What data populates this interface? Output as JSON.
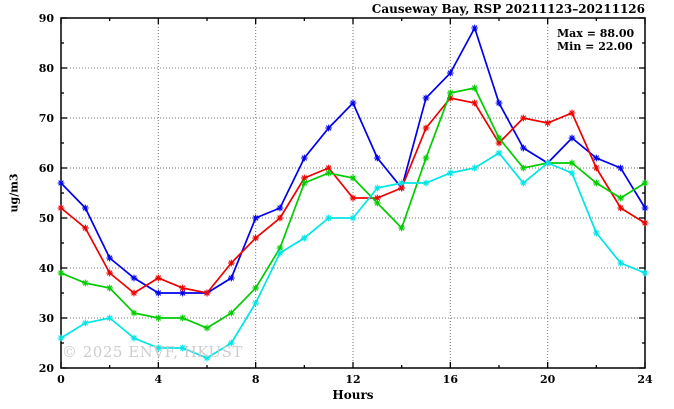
{
  "header": {
    "title": "Causeway Bay, RSP 20211123–20211126"
  },
  "annotations": {
    "max_label": "Max = 88.00",
    "min_label": "Min = 22.00"
  },
  "watermark": "© 2025 ENVF, HKUST",
  "axes": {
    "x_title": "Hours",
    "y_title": "ug/m3"
  },
  "chart_data": {
    "type": "line",
    "title": "Causeway Bay, RSP 20211123–20211126",
    "xlabel": "Hours",
    "ylabel": "ug/m3",
    "xlim": [
      0,
      24
    ],
    "ylim": [
      20,
      90
    ],
    "x_major_ticks": [
      0,
      4,
      8,
      12,
      16,
      20,
      24
    ],
    "x_minor_ticks": [
      2,
      6,
      10,
      14,
      18,
      22
    ],
    "y_major_ticks": [
      20,
      30,
      40,
      50,
      60,
      70,
      80,
      90
    ],
    "y_minor_ticks": [
      25,
      35,
      45,
      55,
      65,
      75,
      85
    ],
    "grid": {
      "style": "dotted",
      "x_lines": [
        4,
        8,
        12,
        16,
        20
      ],
      "y_lines": [
        30,
        40,
        50,
        60,
        70,
        80
      ],
      "color": "#777777"
    },
    "legend_position": "none",
    "stat_max": 88.0,
    "stat_min": 22.0,
    "x": [
      0,
      1,
      2,
      3,
      4,
      5,
      6,
      7,
      8,
      9,
      10,
      11,
      12,
      13,
      14,
      15,
      16,
      17,
      18,
      19,
      20,
      21,
      22,
      23,
      24
    ],
    "series": [
      {
        "name": "series-blue",
        "color": "#0000ee",
        "values": [
          57,
          52,
          42,
          38,
          35,
          35,
          35,
          38,
          50,
          52,
          62,
          68,
          73,
          62,
          56,
          74,
          79,
          88,
          73,
          64,
          61,
          66,
          62,
          60,
          52
        ]
      },
      {
        "name": "series-red",
        "color": "#ee0000",
        "values": [
          52,
          48,
          39,
          35,
          38,
          36,
          35,
          41,
          46,
          50,
          58,
          60,
          54,
          54,
          56,
          68,
          74,
          73,
          65,
          70,
          69,
          71,
          60,
          52,
          49
        ]
      },
      {
        "name": "series-green",
        "color": "#00cc00",
        "values": [
          39,
          37,
          36,
          31,
          30,
          30,
          28,
          31,
          36,
          44,
          57,
          59,
          58,
          53,
          48,
          62,
          75,
          76,
          66,
          60,
          61,
          61,
          57,
          54,
          57
        ]
      },
      {
        "name": "series-cyan",
        "color": "#00e5e5",
        "values": [
          26,
          29,
          30,
          26,
          24,
          24,
          22,
          25,
          33,
          43,
          46,
          50,
          50,
          56,
          57,
          57,
          59,
          60,
          63,
          57,
          61,
          59,
          47,
          41,
          39
        ]
      }
    ]
  }
}
